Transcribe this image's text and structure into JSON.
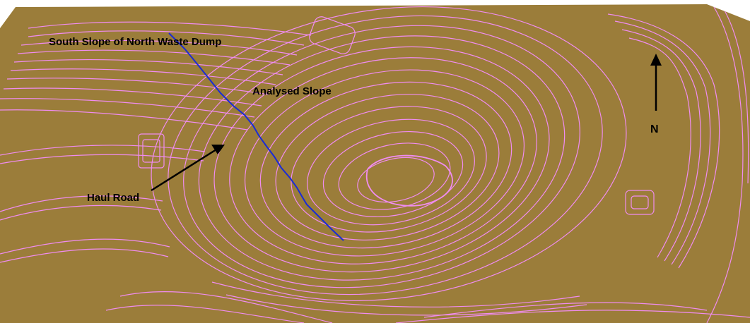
{
  "labels": {
    "north_waste_dump": "South Slope of North Waste Dump",
    "analysed_slope": "Analysed Slope",
    "haul_road": "Haul Road",
    "north": "N"
  },
  "colors": {
    "terrain": "#9B7D3A",
    "contour": "#F08CF0",
    "section_line": "#1A2BD6",
    "annotation": "#000000",
    "background": "#FFFFFF"
  }
}
